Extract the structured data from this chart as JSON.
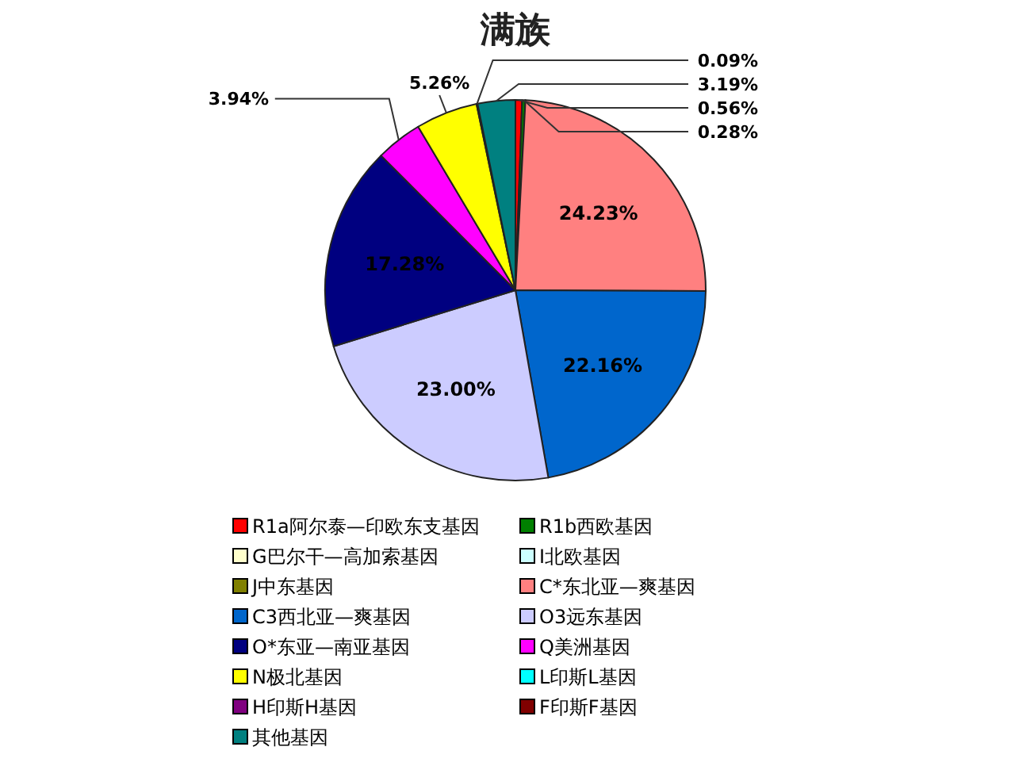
{
  "chart_data": {
    "type": "pie",
    "title": "满族",
    "categories": [
      "R1a阿尔泰—印欧东支基因",
      "R1b西欧基因",
      "G巴尔干—高加索基因",
      "I北欧基因",
      "J中东基因",
      "C*东北亚—爽基因",
      "C3西北亚—爽基因",
      "O3远东基因",
      "O*东亚—南亚基因",
      "Q美洲基因",
      "N极北基因",
      "L印斯L基因",
      "H印斯H基因",
      "F印斯F基因",
      "其他基因"
    ],
    "values": [
      0.56,
      0.28,
      0,
      0,
      0,
      24.23,
      22.16,
      23.0,
      17.28,
      3.94,
      5.26,
      0,
      0,
      0.09,
      3.19
    ],
    "value_labels": [
      "0.56%",
      "0.28%",
      null,
      null,
      null,
      "24.23%",
      "22.16%",
      "23.00%",
      "17.28%",
      "3.94%",
      "5.26%",
      null,
      null,
      "0.09%",
      "3.19%"
    ],
    "colors": [
      "#ff0000",
      "#008000",
      "#ffffcc",
      "#ccffff",
      "#808000",
      "#ff8080",
      "#0066cc",
      "#ccccff",
      "#000080",
      "#ff00ff",
      "#ffff00",
      "#00ffff",
      "#800080",
      "#800000",
      "#008080"
    ],
    "legend": "bottom"
  }
}
